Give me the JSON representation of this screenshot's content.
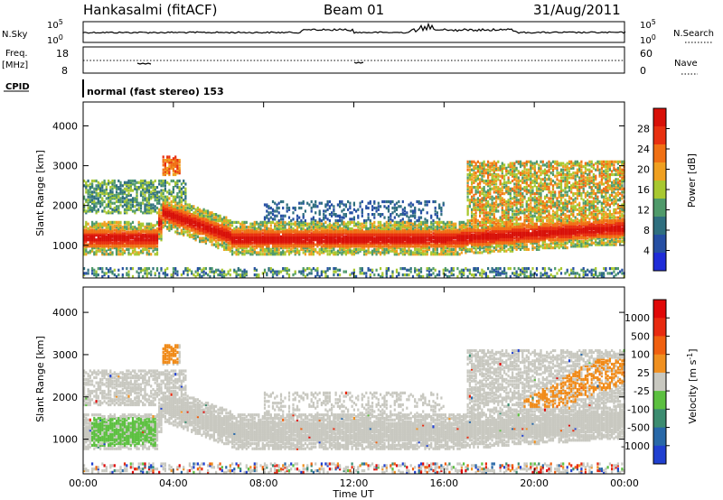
{
  "header": {
    "site": "Hankasalmi (fitACF)",
    "beam": "Beam 01",
    "date": "31/Aug/2011"
  },
  "top_strip": {
    "left_label": "N.Sky",
    "right_label": "N.Search",
    "y_top_label": "10^5",
    "y_bottom_label": "10^0",
    "y_top_label_right": "10^5",
    "y_bottom_label_right": "10^0"
  },
  "freq_strip": {
    "left_label_1": "Freq.",
    "left_label_2": "[MHz]",
    "left_ticks": [
      "18",
      "8"
    ],
    "right_ticks": [
      "60",
      "0"
    ],
    "right_label": "Nave"
  },
  "cpid": {
    "label": "CPID",
    "mode": "normal (fast stereo) 153"
  },
  "chart_data": [
    {
      "type": "heatmap",
      "name": "power-panel",
      "ylabel": "Slant Range [km]",
      "yticks": [
        1000,
        2000,
        3000,
        4000
      ],
      "ylim": [
        180,
        4600
      ],
      "xlim": [
        0,
        24
      ],
      "colorbar": {
        "label": "Power [dB]",
        "ticks": [
          "4",
          "8",
          "12",
          "16",
          "20",
          "24",
          "28"
        ],
        "colors": [
          "#1f2cd8",
          "#264fa3",
          "#2f6f7f",
          "#4f9a6a",
          "#a8c830",
          "#f0a020",
          "#f07014",
          "#e83010",
          "#d81008"
        ]
      },
      "bands": [
        {
          "range_km": [
            900,
            1450
          ],
          "x": [
            0,
            3.5
          ],
          "level": "high"
        },
        {
          "range_km": [
            1400,
            2300
          ],
          "x": [
            3.3,
            6.5
          ],
          "level": "high"
        },
        {
          "range_km": [
            950,
            1550
          ],
          "x": [
            6.0,
            24
          ],
          "level": "high"
        },
        {
          "range_km": [
            1800,
            2600
          ],
          "x": [
            0,
            4.5
          ],
          "level": "mid"
        },
        {
          "range_km": [
            2400,
            3100
          ],
          "x": [
            17,
            24
          ],
          "level": "mid"
        },
        {
          "range_km": [
            1400,
            2800
          ],
          "x": [
            19,
            24
          ],
          "level": "mid"
        }
      ]
    },
    {
      "type": "heatmap",
      "name": "velocity-panel",
      "ylabel": "Slant Range [km]",
      "yticks": [
        1000,
        2000,
        3000,
        4000
      ],
      "ylim": [
        180,
        4600
      ],
      "xlim": [
        0,
        24
      ],
      "xticks": [
        "00:00",
        "04:00",
        "08:00",
        "12:00",
        "16:00",
        "20:00",
        "00:00"
      ],
      "xlabel": "Time UT",
      "colorbar": {
        "label": "Velocity [m s^-1]",
        "ticks": [
          "1000",
          "500",
          "100",
          "25",
          "-25",
          "-100",
          "-500",
          "-1000"
        ],
        "colors": [
          "#2040d0",
          "#2868a8",
          "#3c8c70",
          "#5cc040",
          "#c8c8c0",
          "#f09020",
          "#f06010",
          "#e82a10",
          "#e00808"
        ]
      }
    }
  ],
  "colors": {
    "ground_gray": "#c8c8c0",
    "green": "#5cc040",
    "orange": "#f08a18"
  }
}
